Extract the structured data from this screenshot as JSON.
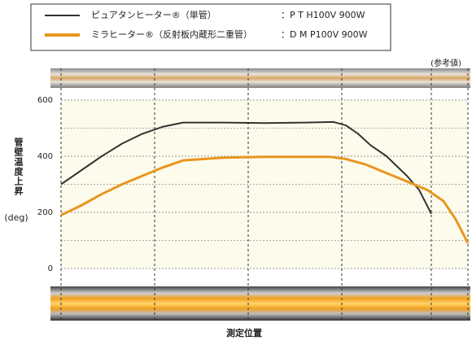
{
  "chart_data": {
    "type": "line",
    "series": [
      {
        "name": "ピュアタンヒーター®（単管）",
        "spec": "：P T H100V 900W",
        "color": "#333333",
        "x": [
          0,
          5,
          10,
          15,
          20,
          25,
          30,
          40,
          50,
          60,
          67,
          70,
          73,
          76,
          80,
          85,
          88,
          91
        ],
        "values": [
          300,
          350,
          400,
          445,
          480,
          505,
          520,
          520,
          518,
          520,
          522,
          510,
          480,
          440,
          400,
          330,
          280,
          195
        ]
      },
      {
        "name": "ミラヒーター®（反射板内蔵形二重管）",
        "spec": "：D M P100V 900W",
        "color": "#e8961e",
        "x": [
          0,
          5,
          10,
          15,
          20,
          25,
          30,
          40,
          50,
          60,
          66,
          70,
          75,
          80,
          85,
          90,
          94,
          97,
          100
        ],
        "values": [
          190,
          225,
          265,
          300,
          330,
          360,
          385,
          395,
          398,
          398,
          398,
          390,
          370,
          340,
          310,
          280,
          240,
          175,
          90
        ]
      }
    ],
    "note": "(参考値)",
    "y_label": "管壁温度上昇",
    "y_unit": "(deg)",
    "x_label": "測定位置",
    "xlim": [
      0,
      100
    ],
    "xticks": [
      0,
      23,
      46,
      69,
      91,
      100
    ],
    "ylim": [
      0,
      600
    ],
    "yticks": [
      0,
      200,
      400,
      600
    ],
    "grid": true
  }
}
